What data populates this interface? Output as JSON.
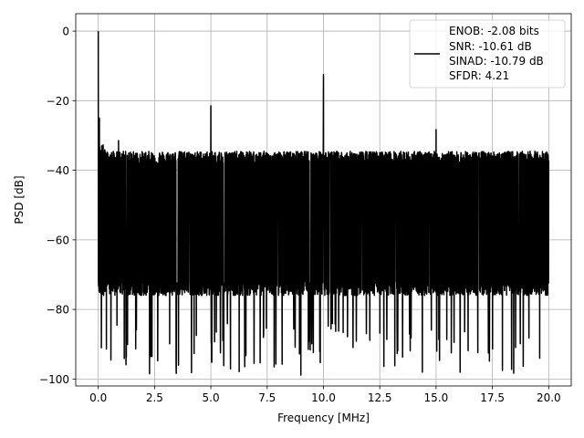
{
  "chart_data": {
    "type": "line",
    "title": "",
    "xlabel": "Frequency [MHz]",
    "ylabel": "PSD [dB]",
    "xlim": [
      -1.0,
      21.0
    ],
    "ylim": [
      -102,
      5
    ],
    "grid": true,
    "xticks": [
      0.0,
      2.5,
      5.0,
      7.5,
      10.0,
      12.5,
      15.0,
      17.5,
      20.0
    ],
    "xtick_labels": [
      "0.0",
      "2.5",
      "5.0",
      "7.5",
      "10.0",
      "12.5",
      "15.0",
      "17.5",
      "20.0"
    ],
    "yticks": [
      0,
      -20,
      -40,
      -60,
      -80,
      -100
    ],
    "ytick_labels": [
      "0",
      "−20",
      "−40",
      "−60",
      "−80",
      "−100"
    ],
    "legend_position": "top-right",
    "series": [
      {
        "name": "ENOB: -2.08 bits\nSNR: -10.61 dB\nSINAD: -10.79 dB\nSFDR: 4.21",
        "legend_lines": [
          "ENOB: -2.08 bits",
          "SNR: -10.61 dB",
          "SINAD: -10.79 dB",
          "SFDR: 4.21"
        ],
        "color": "#000000",
        "x_range": [
          0.0,
          20.0
        ],
        "noise_upper_db": -37,
        "noise_lower_db": -80,
        "noise_min_db": -97,
        "peaks": [
          {
            "x": 0.0,
            "y": 0.0
          },
          {
            "x": 0.05,
            "y": -25
          },
          {
            "x": 0.9,
            "y": -31.5
          },
          {
            "x": 5.0,
            "y": -21.5
          },
          {
            "x": 10.0,
            "y": -12.5
          },
          {
            "x": 15.0,
            "y": -28.3
          }
        ]
      }
    ]
  }
}
